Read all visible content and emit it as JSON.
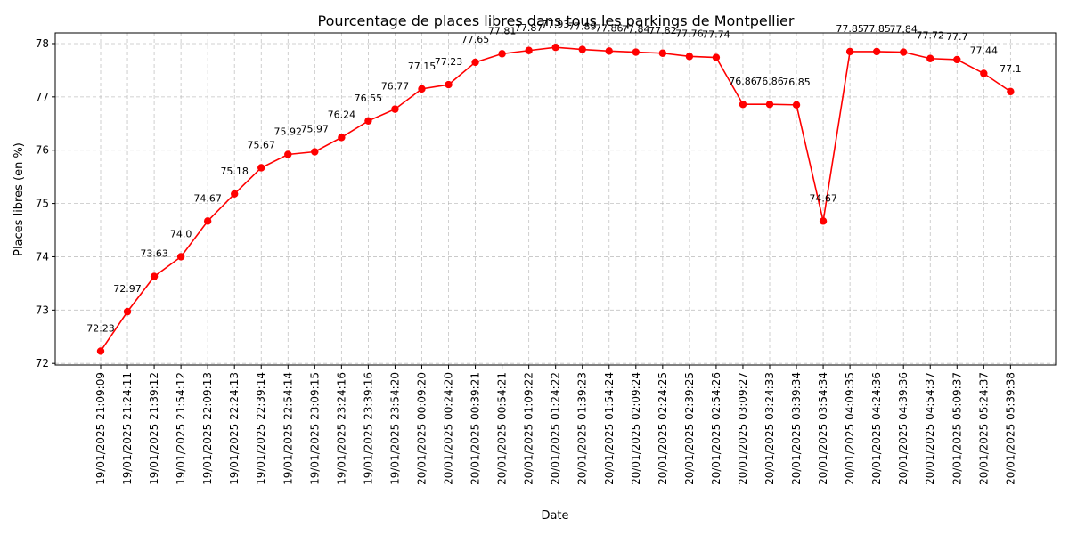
{
  "chart_data": {
    "type": "line",
    "title": "Pourcentage de places libres dans tous les parkings de Montpellier",
    "xlabel": "Date",
    "ylabel": "Places libres (en %)",
    "ylim": [
      71.97,
      78.2
    ],
    "yticks": [
      72,
      73,
      74,
      75,
      76,
      77,
      78
    ],
    "grid": true,
    "line_color": "#ff0000",
    "categories": [
      "19/01/2025 21:09:09",
      "19/01/2025 21:24:11",
      "19/01/2025 21:39:12",
      "19/01/2025 21:54:12",
      "19/01/2025 22:09:13",
      "19/01/2025 22:24:13",
      "19/01/2025 22:39:14",
      "19/01/2025 22:54:14",
      "19/01/2025 23:09:15",
      "19/01/2025 23:24:16",
      "19/01/2025 23:39:16",
      "19/01/2025 23:54:20",
      "20/01/2025 00:09:20",
      "20/01/2025 00:24:20",
      "20/01/2025 00:39:21",
      "20/01/2025 00:54:21",
      "20/01/2025 01:09:22",
      "20/01/2025 01:24:22",
      "20/01/2025 01:39:23",
      "20/01/2025 01:54:24",
      "20/01/2025 02:09:24",
      "20/01/2025 02:24:25",
      "20/01/2025 02:39:25",
      "20/01/2025 02:54:26",
      "20/01/2025 03:09:27",
      "20/01/2025 03:24:33",
      "20/01/2025 03:39:34",
      "20/01/2025 03:54:34",
      "20/01/2025 04:09:35",
      "20/01/2025 04:24:36",
      "20/01/2025 04:39:36",
      "20/01/2025 04:54:37",
      "20/01/2025 05:09:37",
      "20/01/2025 05:24:37",
      "20/01/2025 05:39:38"
    ],
    "values": [
      72.23,
      72.97,
      73.63,
      74.0,
      74.67,
      75.18,
      75.67,
      75.92,
      75.97,
      76.24,
      76.55,
      76.77,
      77.15,
      77.23,
      77.65,
      77.81,
      77.87,
      77.93,
      77.89,
      77.86,
      77.84,
      77.82,
      77.76,
      77.74,
      76.86,
      76.86,
      76.85,
      74.67,
      77.85,
      77.85,
      77.84,
      77.72,
      77.7,
      77.44,
      77.1
    ],
    "value_labels": [
      "72.23",
      "72.97",
      "73.63",
      "74.0",
      "74.67",
      "75.18",
      "75.67",
      "75.92",
      "75.97",
      "76.24",
      "76.55",
      "76.77",
      "77.15",
      "77.23",
      "77.65",
      "77.81",
      "77.87",
      "77.93",
      "77.89",
      "77.86",
      "77.84",
      "77.82",
      "77.76",
      "77.74",
      "76.86",
      "76.86",
      "76.85",
      "74.67",
      "77.85",
      "77.85",
      "77.84",
      "77.72",
      "77.7",
      "77.44",
      "77.1"
    ]
  }
}
